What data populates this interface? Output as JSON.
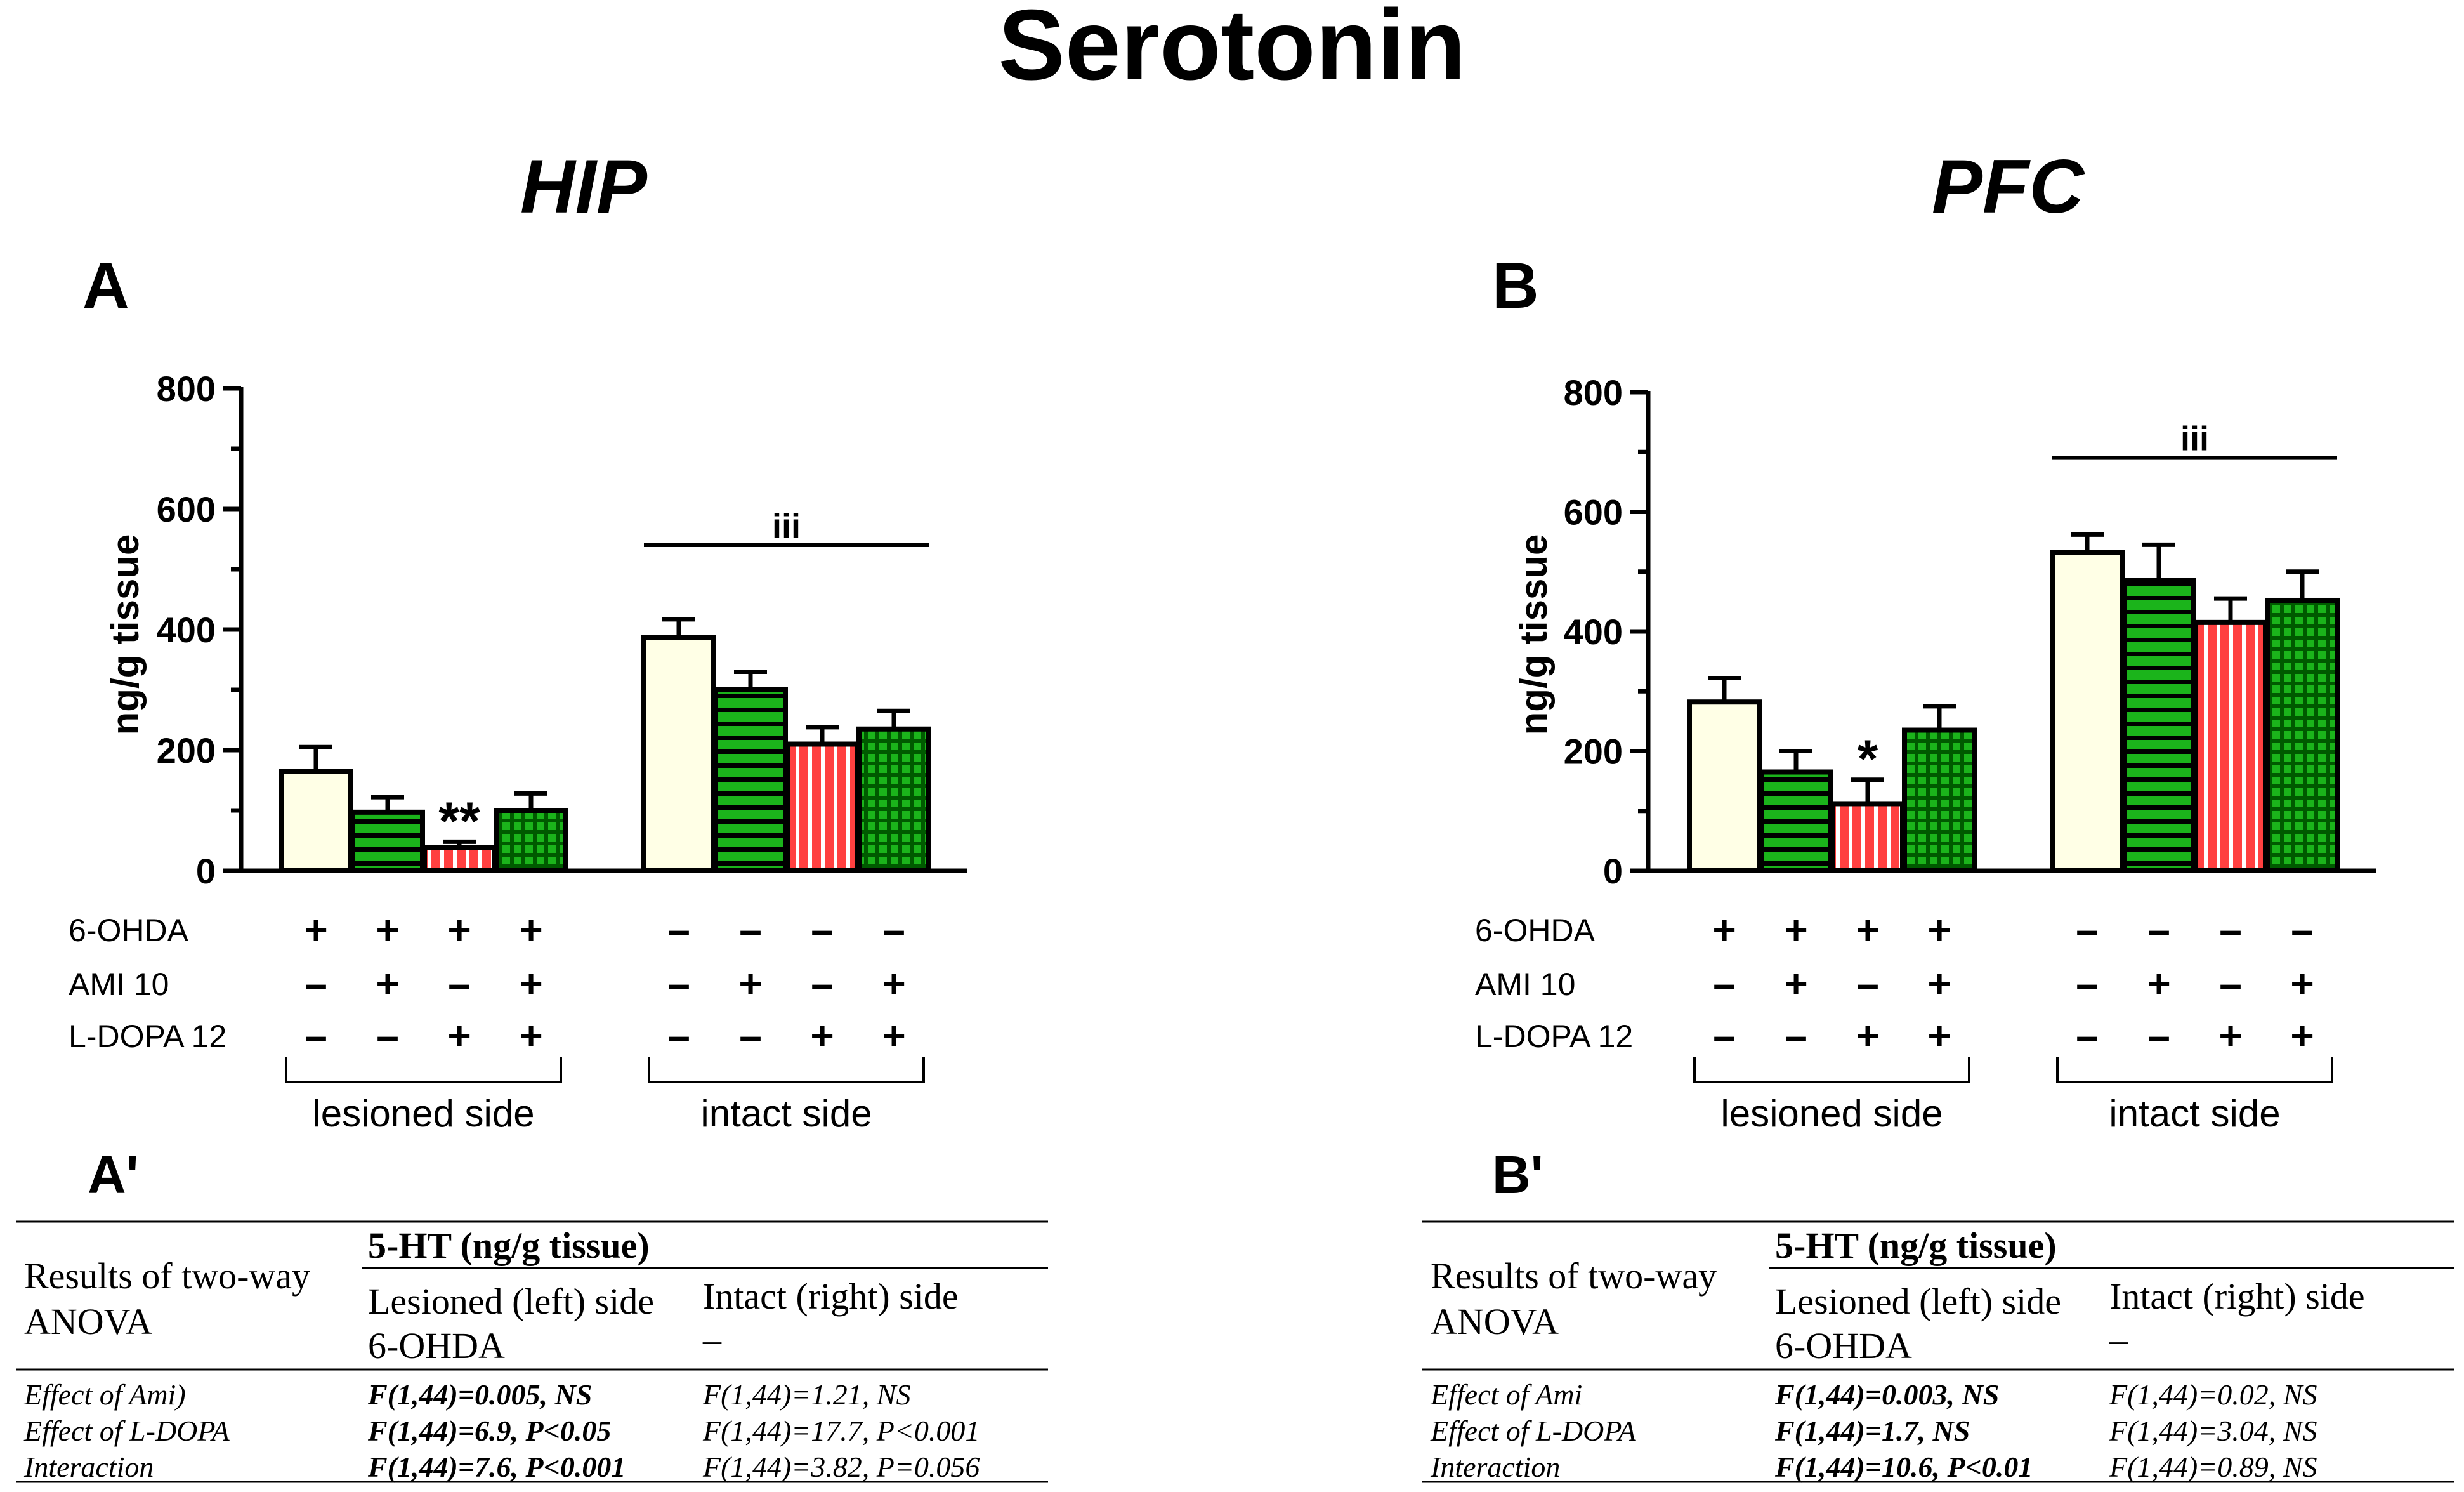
{
  "figure": {
    "title": "Serotonin"
  },
  "panels": [
    {
      "id": "A",
      "region": "HIP",
      "letter": "A",
      "stats_letter": "A'",
      "ylabel": "ng/g tissue",
      "chart_data": {
        "type": "bar",
        "ylim": [
          0,
          800
        ],
        "yticks": [
          0,
          200,
          400,
          600,
          800
        ],
        "groups": [
          "lesioned side",
          "intact side"
        ],
        "treatment_rows": [
          {
            "label": "6-OHDA",
            "signs": [
              "+",
              "+",
              "+",
              "+",
              "–",
              "–",
              "–",
              "–"
            ]
          },
          {
            "label": "AMI 10",
            "signs": [
              "–",
              "+",
              "–",
              "+",
              "–",
              "+",
              "–",
              "+"
            ]
          },
          {
            "label": "L-DOPA 12",
            "signs": [
              "–",
              "–",
              "+",
              "+",
              "–",
              "–",
              "+",
              "+"
            ]
          }
        ],
        "values": [
          165,
          97,
          38,
          100,
          387,
          300,
          210,
          235
        ],
        "errors": [
          40,
          25,
          10,
          28,
          30,
          30,
          28,
          30
        ],
        "patterns": [
          "cream",
          "green-h",
          "red-v",
          "green-check",
          "cream",
          "green-h",
          "red-v",
          "green-check"
        ],
        "bar_annotations": [
          {
            "bar": 2,
            "text": "**"
          }
        ],
        "group_bracket": {
          "group": 1,
          "text": "iii",
          "y": 540
        }
      },
      "stats_table": {
        "row_header": "Results of two-way ANOVA",
        "measure": "5-HT (ng/g tissue)",
        "col1_line1": "Lesioned (left) side",
        "col1_line2": "6-OHDA",
        "col2_line1": "Intact (right) side",
        "col2_line2": "–",
        "rows": [
          {
            "effect": "Effect of Ami)",
            "lesioned": "F(1,44)=0.005, NS",
            "intact": "F(1,44)=1.21, NS"
          },
          {
            "effect": "Effect of L-DOPA",
            "lesioned": "F(1,44)=6.9, P<0.05",
            "intact": "F(1,44)=17.7, P<0.001"
          },
          {
            "effect": "Interaction",
            "lesioned": "F(1,44)=7.6, P<0.001",
            "intact": "F(1,44)=3.82, P=0.056"
          }
        ]
      }
    },
    {
      "id": "B",
      "region": "PFC",
      "letter": "B",
      "stats_letter": "B'",
      "ylabel": "ng/g tissue",
      "chart_data": {
        "type": "bar",
        "ylim": [
          0,
          800
        ],
        "yticks": [
          0,
          200,
          400,
          600,
          800
        ],
        "groups": [
          "lesioned side",
          "intact side"
        ],
        "treatment_rows": [
          {
            "label": "6-OHDA",
            "signs": [
              "+",
              "+",
              "+",
              "+",
              "–",
              "–",
              "–",
              "–"
            ]
          },
          {
            "label": "AMI 10",
            "signs": [
              "–",
              "+",
              "–",
              "+",
              "–",
              "+",
              "–",
              "+"
            ]
          },
          {
            "label": "L-DOPA 12",
            "signs": [
              "–",
              "–",
              "+",
              "+",
              "–",
              "–",
              "+",
              "+"
            ]
          }
        ],
        "values": [
          282,
          165,
          112,
          235,
          532,
          485,
          415,
          452
        ],
        "errors": [
          40,
          35,
          40,
          40,
          30,
          60,
          40,
          48
        ],
        "patterns": [
          "cream",
          "green-h",
          "red-v",
          "green-check",
          "cream",
          "green-h",
          "red-v",
          "green-check"
        ],
        "bar_annotations": [
          {
            "bar": 2,
            "text": "*"
          }
        ],
        "group_bracket": {
          "group": 1,
          "text": "iii",
          "y": 690
        }
      },
      "stats_table": {
        "row_header": "Results of two-way ANOVA",
        "measure": "5-HT (ng/g tissue)",
        "col1_line1": "Lesioned (left) side",
        "col1_line2": "6-OHDA",
        "col2_line1": "Intact (right) side",
        "col2_line2": "–",
        "rows": [
          {
            "effect": "Effect of Ami",
            "lesioned": "F(1,44)=0.003, NS",
            "intact": "F(1,44)=0.02, NS"
          },
          {
            "effect": "Effect of L-DOPA",
            "lesioned": "F(1,44)=1.7, NS",
            "intact": "F(1,44)=3.04, NS"
          },
          {
            "effect": "Interaction",
            "lesioned": "F(1,44)=10.6, P<0.01",
            "intact": "F(1,44)=0.89, NS"
          }
        ]
      }
    }
  ],
  "colors": {
    "cream": "#ffffe6",
    "green": "#1bb41b",
    "dark_green": "#005a00",
    "red": "#ff4040",
    "ink": "#000000"
  }
}
